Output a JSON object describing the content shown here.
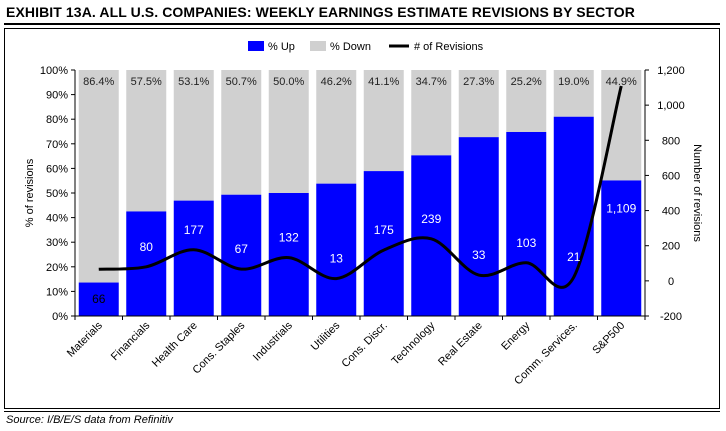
{
  "title": "EXHIBIT 13A.  ALL U.S. COMPANIES: WEEKLY EARNINGS ESTIMATE REVISIONS BY SECTOR",
  "source": "Source: I/B/E/S data from Refinitiv",
  "chart_data": {
    "type": "bar",
    "stacked": true,
    "categories": [
      "Materials",
      "Financials",
      "Health Care",
      "Cons. Staples",
      "Industrials",
      "Utilities",
      "Cons. Discr.",
      "Technology",
      "Real Estate",
      "Energy",
      "Comm. Services.",
      "S&P500"
    ],
    "series": [
      {
        "name": "% Up",
        "type": "bar",
        "axis": "left",
        "color": "#0000ff",
        "values": [
          13.6,
          42.5,
          46.9,
          49.3,
          50.0,
          53.8,
          58.9,
          65.3,
          72.7,
          74.8,
          81.0,
          55.1
        ]
      },
      {
        "name": "% Down",
        "type": "bar",
        "axis": "left",
        "color": "#d0d0d0",
        "values": [
          86.4,
          57.5,
          53.1,
          50.7,
          50.0,
          46.2,
          41.1,
          34.7,
          27.3,
          25.2,
          19.0,
          44.9
        ]
      },
      {
        "name": "# of Revisions",
        "type": "line",
        "axis": "right",
        "color": "#000000",
        "values": [
          66,
          80,
          177,
          67,
          132,
          13,
          175,
          239,
          33,
          103,
          21,
          1109
        ]
      }
    ],
    "down_labels": [
      "86.4%",
      "57.5%",
      "53.1%",
      "50.7%",
      "50.0%",
      "46.2%",
      "41.1%",
      "34.7%",
      "27.3%",
      "25.2%",
      "19.0%",
      "44.9%"
    ],
    "count_labels": [
      "66",
      "80",
      "177",
      "67",
      "132",
      "13",
      "175",
      "239",
      "33",
      "103",
      "21",
      "1,109"
    ],
    "ylabel": "% of revisions",
    "y2label": "Number of revisions",
    "ylim": [
      0,
      100
    ],
    "y2lim": [
      -200,
      1200
    ],
    "y_ticks": [
      "0%",
      "10%",
      "20%",
      "30%",
      "40%",
      "50%",
      "60%",
      "70%",
      "80%",
      "90%",
      "100%"
    ],
    "y2_ticks": [
      "-200",
      "0",
      "200",
      "400",
      "600",
      "800",
      "1,000",
      "1,200"
    ],
    "legend_position": "top",
    "grid": false
  }
}
